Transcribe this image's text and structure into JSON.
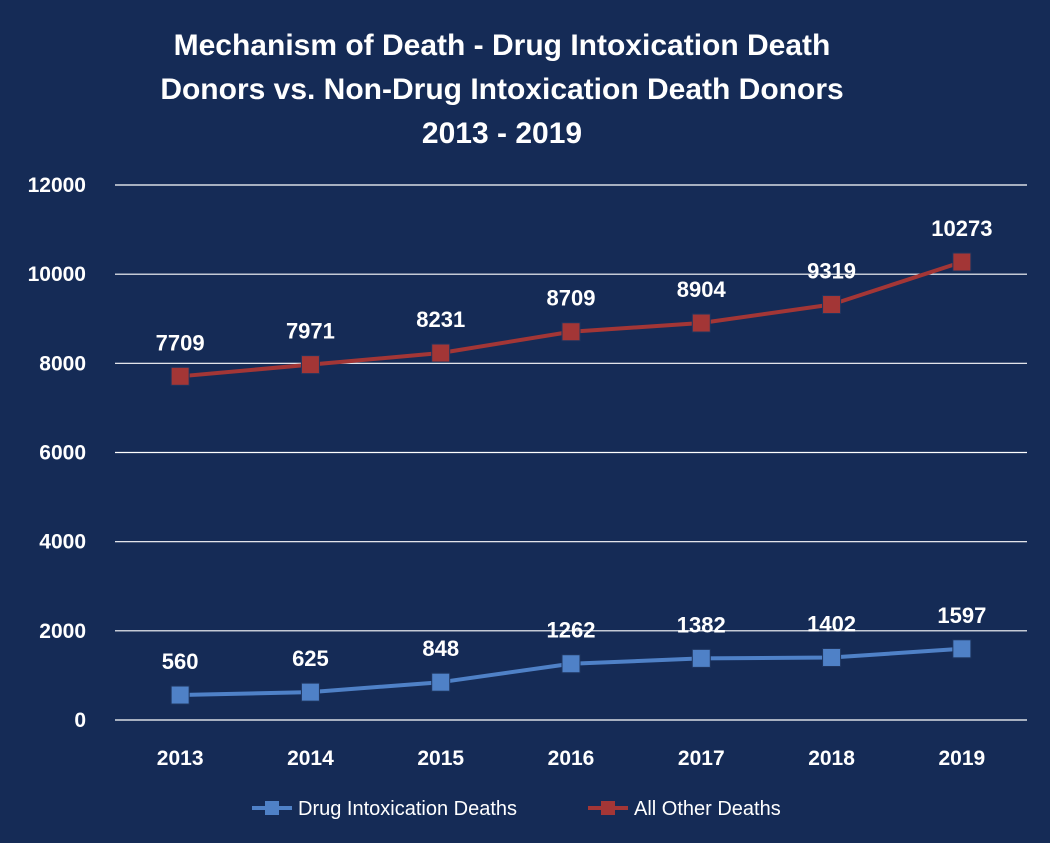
{
  "chart_data": {
    "type": "line",
    "title_lines": [
      "Mechanism of Death - Drug Intoxication Death",
      "Donors vs. Non-Drug Intoxication Death Donors",
      "2013 - 2019"
    ],
    "categories": [
      "2013",
      "2014",
      "2015",
      "2016",
      "2017",
      "2018",
      "2019"
    ],
    "series": [
      {
        "name": "Drug Intoxication Deaths",
        "color": "#4f81c7",
        "values": [
          560,
          625,
          848,
          1262,
          1382,
          1402,
          1597
        ],
        "labels": [
          "560",
          "625",
          "848",
          "1262",
          "1382",
          "1402",
          "1597"
        ]
      },
      {
        "name": "All Other Deaths",
        "color": "#a33636",
        "values": [
          7709,
          7971,
          8231,
          8709,
          8904,
          9319,
          10273
        ],
        "labels": [
          "7709",
          "7971",
          "8231",
          "8709",
          "8904",
          "9319",
          "10273"
        ]
      }
    ],
    "ylim": [
      0,
      12000
    ],
    "yticks": [
      0,
      2000,
      4000,
      6000,
      8000,
      10000,
      12000
    ],
    "ytick_labels": [
      "0",
      "2000",
      "4000",
      "6000",
      "8000",
      "10000",
      "12000"
    ],
    "grid": true,
    "legend": "bottom",
    "background": "#152b56",
    "grid_color": "#ffffff"
  }
}
